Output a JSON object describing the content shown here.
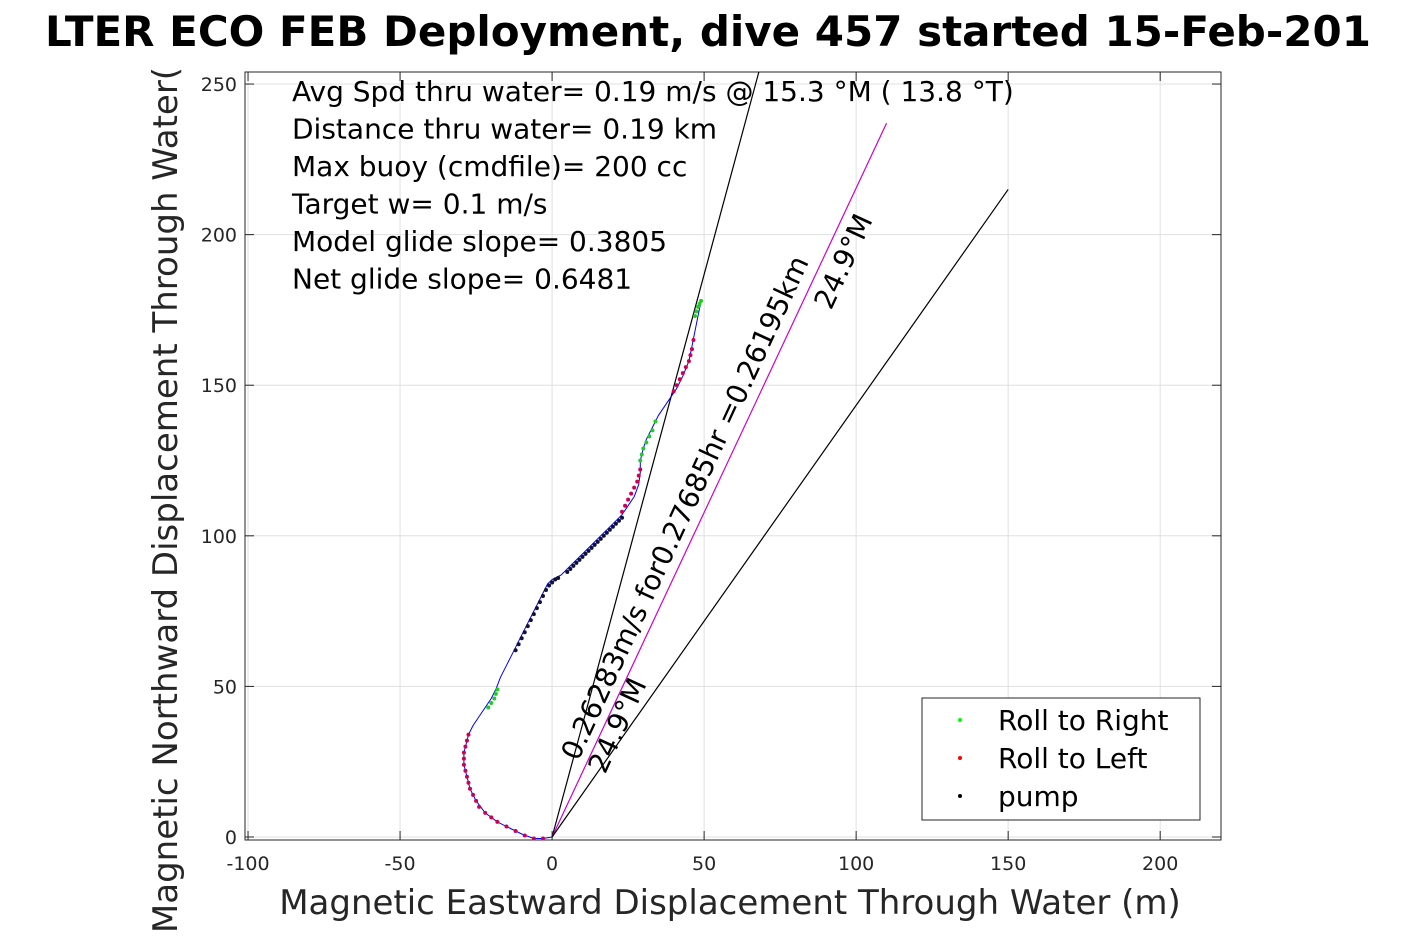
{
  "chart_data": {
    "type": "scatter",
    "title": "LTER ECO FEB Deployment, dive 457 started 15-Feb-201",
    "xlabel": "Magnetic Eastward Displacement Through Water (m)",
    "ylabel": "Magnetic Northward Displacement Through Water(",
    "xlim": [
      -101,
      220
    ],
    "ylim": [
      -1,
      254
    ],
    "xticks": [
      -100,
      -50,
      0,
      50,
      100,
      150,
      200
    ],
    "xtick_labels": [
      "-100",
      "-50",
      "0",
      "50",
      "100",
      "150",
      "200"
    ],
    "yticks": [
      0,
      50,
      100,
      150,
      200,
      250
    ],
    "ytick_labels": [
      "0",
      "50",
      "100",
      "150",
      "200",
      "250"
    ],
    "grid": true,
    "legend_position": "bottom-right",
    "legend": [
      {
        "label": "Roll to Right",
        "color": "#00ff00"
      },
      {
        "label": "Roll to Left",
        "color": "#ff0000"
      },
      {
        "label": "pump",
        "color": "#000000"
      }
    ],
    "info_lines": [
      "Avg Spd thru water=  0.19 m/s @  15.3 °M ( 13.8 °T)",
      "Distance thru water=  0.19 km",
      "Max buoy (cmdfile)= 200 cc",
      "Target w= 0.1 m/s",
      "Model glide slope= 0.3805",
      "Net glide slope= 0.6481"
    ],
    "track_color": "#0000ff",
    "track": [
      [
        0,
        0
      ],
      [
        -3,
        -0.5
      ],
      [
        -6,
        -0.5
      ],
      [
        -10,
        1
      ],
      [
        -14,
        3
      ],
      [
        -18,
        5
      ],
      [
        -22,
        8
      ],
      [
        -25,
        12
      ],
      [
        -27,
        16
      ],
      [
        -28,
        20
      ],
      [
        -29,
        24
      ],
      [
        -29,
        28
      ],
      [
        -28,
        32
      ],
      [
        -27.5,
        34
      ],
      [
        -26,
        37
      ],
      [
        -24,
        40
      ],
      [
        -22,
        43
      ],
      [
        -20,
        46
      ],
      [
        -18.5,
        49
      ],
      [
        -17,
        53
      ],
      [
        -15,
        57
      ],
      [
        -13,
        61
      ],
      [
        -11,
        65
      ],
      [
        -9,
        69
      ],
      [
        -7,
        73
      ],
      [
        -5,
        77
      ],
      [
        -3,
        81
      ],
      [
        -1.5,
        84
      ],
      [
        0,
        85.5
      ],
      [
        1,
        86
      ],
      [
        3,
        87
      ],
      [
        5,
        89
      ],
      [
        8,
        92
      ],
      [
        12,
        96
      ],
      [
        16,
        100
      ],
      [
        20,
        104
      ],
      [
        23,
        107
      ],
      [
        25,
        110
      ],
      [
        27,
        113
      ],
      [
        28.5,
        117
      ],
      [
        29,
        121
      ],
      [
        29,
        125
      ],
      [
        30,
        129
      ],
      [
        31,
        132
      ],
      [
        33,
        136
      ],
      [
        35,
        140
      ],
      [
        37,
        143
      ],
      [
        39,
        146
      ],
      [
        41,
        149
      ],
      [
        43,
        153
      ],
      [
        45,
        158
      ],
      [
        46,
        163
      ],
      [
        47,
        168
      ],
      [
        48,
        173
      ],
      [
        49,
        178
      ]
    ],
    "roll_right_points": [
      [
        -21,
        43
      ],
      [
        -20,
        44.5
      ],
      [
        -19,
        46
      ],
      [
        -18.5,
        47.5
      ],
      [
        -18,
        49
      ],
      [
        29,
        125
      ],
      [
        29.5,
        127
      ],
      [
        30,
        129
      ],
      [
        31,
        131
      ],
      [
        32,
        133
      ],
      [
        33,
        135
      ],
      [
        34,
        138
      ],
      [
        47,
        173
      ],
      [
        47.5,
        174.5
      ],
      [
        48,
        176
      ],
      [
        48.5,
        177
      ],
      [
        49,
        178
      ]
    ],
    "roll_left_points": [
      [
        -3,
        -0.5
      ],
      [
        -6,
        -0.5
      ],
      [
        -9,
        0.5
      ],
      [
        -12,
        2
      ],
      [
        -15,
        3.5
      ],
      [
        -18,
        5
      ],
      [
        -20,
        6.5
      ],
      [
        -22,
        8
      ],
      [
        -24,
        10
      ],
      [
        -25,
        12
      ],
      [
        -26,
        14
      ],
      [
        -27,
        16
      ],
      [
        -27.5,
        18
      ],
      [
        -28,
        20
      ],
      [
        -28.5,
        22
      ],
      [
        -29,
        24
      ],
      [
        -29,
        26
      ],
      [
        -29,
        28
      ],
      [
        -28.5,
        30
      ],
      [
        -28,
        32
      ],
      [
        -27.5,
        34
      ],
      [
        23,
        108
      ],
      [
        24,
        110
      ],
      [
        25,
        112
      ],
      [
        26,
        114
      ],
      [
        27,
        116
      ],
      [
        28,
        118
      ],
      [
        28.5,
        120
      ],
      [
        29,
        122
      ],
      [
        40,
        148
      ],
      [
        41,
        150
      ],
      [
        42,
        152
      ],
      [
        43,
        154
      ],
      [
        44,
        156
      ],
      [
        45,
        158
      ],
      [
        45.5,
        160
      ],
      [
        46,
        162
      ],
      [
        46.5,
        165
      ]
    ],
    "pump_points": [
      [
        -12,
        62
      ],
      [
        -11,
        64
      ],
      [
        -10,
        66
      ],
      [
        -9,
        68
      ],
      [
        -8,
        70
      ],
      [
        -7,
        72
      ],
      [
        -6,
        74
      ],
      [
        -5,
        76
      ],
      [
        -4,
        78
      ],
      [
        -3,
        80
      ],
      [
        -2,
        82
      ],
      [
        -1,
        83.5
      ],
      [
        0,
        84.5
      ],
      [
        1,
        85.5
      ],
      [
        2,
        86
      ],
      [
        5,
        88
      ],
      [
        6,
        89
      ],
      [
        7,
        90
      ],
      [
        8,
        91
      ],
      [
        9,
        92
      ],
      [
        10,
        93
      ],
      [
        11,
        94
      ],
      [
        12,
        95
      ],
      [
        13,
        96
      ],
      [
        14,
        97
      ],
      [
        15,
        98
      ],
      [
        16,
        99
      ],
      [
        17,
        100
      ],
      [
        18,
        101
      ],
      [
        19,
        102
      ],
      [
        20,
        103
      ],
      [
        21,
        104
      ],
      [
        22,
        105
      ],
      [
        23,
        106
      ]
    ],
    "ref_lines": [
      {
        "from": [
          0,
          0
        ],
        "to": [
          68,
          254
        ],
        "color": "#000000"
      },
      {
        "from": [
          0,
          0
        ],
        "to": [
          110,
          237
        ],
        "color": "#cc00cc"
      },
      {
        "from": [
          0,
          0
        ],
        "to": [
          150,
          215
        ],
        "color": "#000000"
      }
    ],
    "annotations": [
      {
        "lines": [
          "0.26283m/s for0.27685hr =0.26195km",
          "24.9°M"
        ],
        "anchor": [
          0,
          0
        ],
        "angle_along": [
          110,
          237
        ],
        "rotation": -65.2
      },
      {
        "lines": [
          "24.9°M"
        ],
        "anchor": [
          0,
          0
        ],
        "angle_along": [
          110,
          237
        ],
        "rotation": -65.2
      }
    ]
  }
}
